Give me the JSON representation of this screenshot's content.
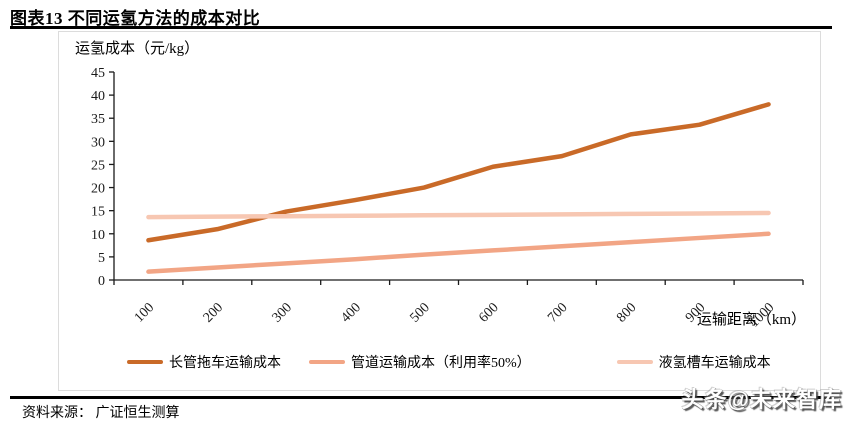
{
  "header": {
    "title": "图表13 不同运氢方法的成本对比"
  },
  "footer": {
    "source": "资料来源： 广证恒生测算",
    "watermark": "头条@未来智库"
  },
  "chart_data": {
    "type": "line",
    "y_axis_title": "运氢成本（元/kg）",
    "x_axis_title": "运输距离（km）",
    "categories": [
      100,
      200,
      300,
      400,
      500,
      600,
      700,
      800,
      900,
      1000
    ],
    "series": [
      {
        "name": "长管拖车运输成本",
        "color": "#C96A28",
        "values": [
          8.6,
          11.0,
          14.8,
          17.3,
          20.0,
          24.5,
          26.8,
          31.5,
          33.6,
          38.0
        ]
      },
      {
        "name": "管道运输成本（利用率50%）",
        "color": "#F2A585",
        "values": [
          1.8,
          2.7,
          3.6,
          4.5,
          5.5,
          6.4,
          7.3,
          8.2,
          9.1,
          10.0
        ]
      },
      {
        "name": "液氢槽车运输成本",
        "color": "#F7C7B2",
        "values": [
          13.6,
          13.7,
          13.8,
          13.9,
          14.0,
          14.1,
          14.2,
          14.3,
          14.4,
          14.5
        ]
      }
    ],
    "ylim": [
      0,
      45
    ],
    "ytick_step": 5,
    "grid": false,
    "legend_position": "bottom",
    "colors": {
      "axis": "#1a1a1a",
      "frame_border": "#dcdcdc"
    }
  }
}
